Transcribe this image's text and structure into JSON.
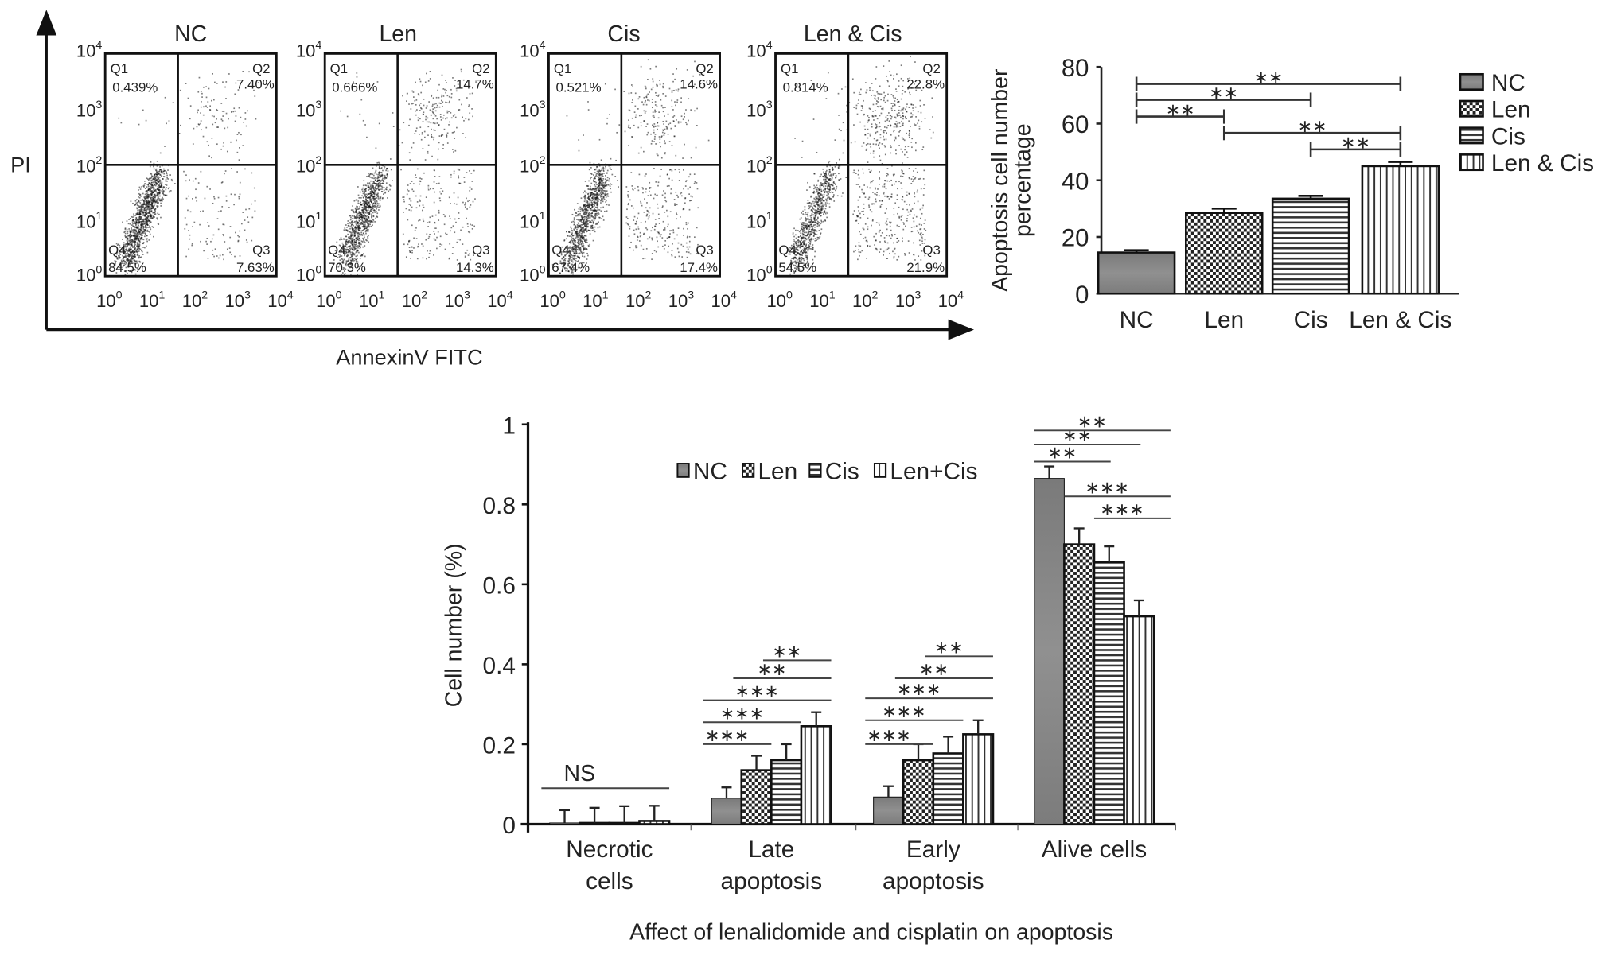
{
  "chart_data": [
    {
      "type": "scatter",
      "subtype": "flow-cytometry-quadrant",
      "ylabel": "PI",
      "xlabel": "AnnexinV FITC",
      "scale": "log10",
      "x_ticks": [
        "0",
        "1",
        "2",
        "3",
        "4"
      ],
      "y_ticks": [
        "0",
        "1",
        "2",
        "3",
        "4"
      ],
      "tick_base": "10",
      "gates": {
        "x_log": 1.7,
        "y_log": 2.0
      },
      "panels": [
        {
          "title": "NC",
          "Q1": "0.439%",
          "Q2": "7.40%",
          "Q3": "7.63%",
          "Q4": "84.5%"
        },
        {
          "title": "Len",
          "Q1": "0.666%",
          "Q2": "14.7%",
          "Q3": "14.3%",
          "Q4": "70.3%"
        },
        {
          "title": "Cis",
          "Q1": "0.521%",
          "Q2": "14.6%",
          "Q3": "17.4%",
          "Q4": "67.4%"
        },
        {
          "title": "Len & Cis",
          "Q1": "0.814%",
          "Q2": "22.8%",
          "Q3": "21.9%",
          "Q4": "54.5%"
        }
      ],
      "quadrant_labels": [
        "Q1",
        "Q2",
        "Q3",
        "Q4"
      ]
    },
    {
      "type": "bar",
      "ylabel": "Apoptosis cell number percentage",
      "ylabel_lines": [
        "Apoptosis cell number",
        "percentage"
      ],
      "categories": [
        "NC",
        "Len",
        "Cis",
        "Len & Cis"
      ],
      "values": [
        14.5,
        28.5,
        33.5,
        45
      ],
      "errors": [
        0.8,
        1.5,
        1.0,
        1.5
      ],
      "ylim": [
        0,
        80
      ],
      "yticks": [
        "0",
        "20",
        "40",
        "60",
        "80"
      ],
      "legend": {
        "entries": [
          "NC",
          "Len",
          "Cis",
          "Len & Cis"
        ],
        "position": "right"
      },
      "patterns": [
        "gray-fill",
        "checker",
        "horizontal-stripes",
        "vertical-stripes"
      ],
      "significance": [
        {
          "from": 0,
          "to": 3,
          "label": "**",
          "y": 74
        },
        {
          "from": 0,
          "to": 2,
          "label": "**",
          "y": 68.4
        },
        {
          "from": 0,
          "to": 1,
          "label": "**",
          "y": 62.5
        },
        {
          "from": 1,
          "to": 3,
          "label": "**",
          "y": 56.7
        },
        {
          "from": 2,
          "to": 3,
          "label": "**",
          "y": 50.9
        }
      ]
    },
    {
      "type": "bar",
      "title": "Affect of lenalidomide and cisplatin on apoptosis",
      "ylabel": "Cell number (%)",
      "categories": [
        [
          "Necrotic",
          "cells"
        ],
        [
          "Late",
          "apoptosis"
        ],
        [
          "Early",
          "apoptosis"
        ],
        [
          "Alive cells"
        ]
      ],
      "ylim": [
        0,
        1
      ],
      "yticks": [
        "0",
        "0.2",
        "0.4",
        "0.6",
        "0.8",
        "1"
      ],
      "legend": {
        "entries": [
          "NC",
          "Len",
          "Cis",
          "Len+Cis"
        ],
        "position": "top"
      },
      "series": [
        {
          "name": "NC",
          "values": [
            0.003,
            0.065,
            0.068,
            0.865
          ],
          "errors": [
            0.032,
            0.027,
            0.027,
            0.03
          ]
        },
        {
          "name": "Len",
          "values": [
            0.003,
            0.135,
            0.16,
            0.7
          ],
          "errors": [
            0.038,
            0.036,
            0.04,
            0.04
          ]
        },
        {
          "name": "Cis",
          "values": [
            0.003,
            0.16,
            0.177,
            0.655
          ],
          "errors": [
            0.042,
            0.04,
            0.042,
            0.04
          ]
        },
        {
          "name": "Len+Cis",
          "values": [
            0.008,
            0.245,
            0.225,
            0.52
          ],
          "errors": [
            0.038,
            0.035,
            0.035,
            0.04
          ]
        }
      ],
      "significance": [
        [
          {
            "from": 0,
            "to": 3,
            "label": "NS",
            "y": 0.09
          }
        ],
        [
          {
            "from": 0,
            "to": 1,
            "label": "***",
            "y": 0.2
          },
          {
            "from": 0,
            "to": 2,
            "label": "***",
            "y": 0.255
          },
          {
            "from": 0,
            "to": 3,
            "label": "***",
            "y": 0.31
          },
          {
            "from": 1,
            "to": 3,
            "label": "**",
            "y": 0.365
          },
          {
            "from": 2,
            "to": 3,
            "label": "**",
            "y": 0.41
          }
        ],
        [
          {
            "from": 0,
            "to": 1,
            "label": "***",
            "y": 0.2
          },
          {
            "from": 0,
            "to": 2,
            "label": "***",
            "y": 0.26
          },
          {
            "from": 0,
            "to": 3,
            "label": "***",
            "y": 0.315
          },
          {
            "from": 1,
            "to": 3,
            "label": "**",
            "y": 0.365
          },
          {
            "from": 2,
            "to": 3,
            "label": "**",
            "y": 0.42
          }
        ],
        [
          {
            "from": 0,
            "to": 1,
            "label": "**",
            "y": 0.907
          },
          {
            "from": 0,
            "to": 2,
            "label": "**",
            "y": 0.95
          },
          {
            "from": 0,
            "to": 3,
            "label": "**",
            "y": 0.985
          },
          {
            "from": 1,
            "to": 3,
            "label": "***",
            "y": 0.82
          },
          {
            "from": 2,
            "to": 3,
            "label": "***",
            "y": 0.765
          }
        ]
      ]
    }
  ]
}
